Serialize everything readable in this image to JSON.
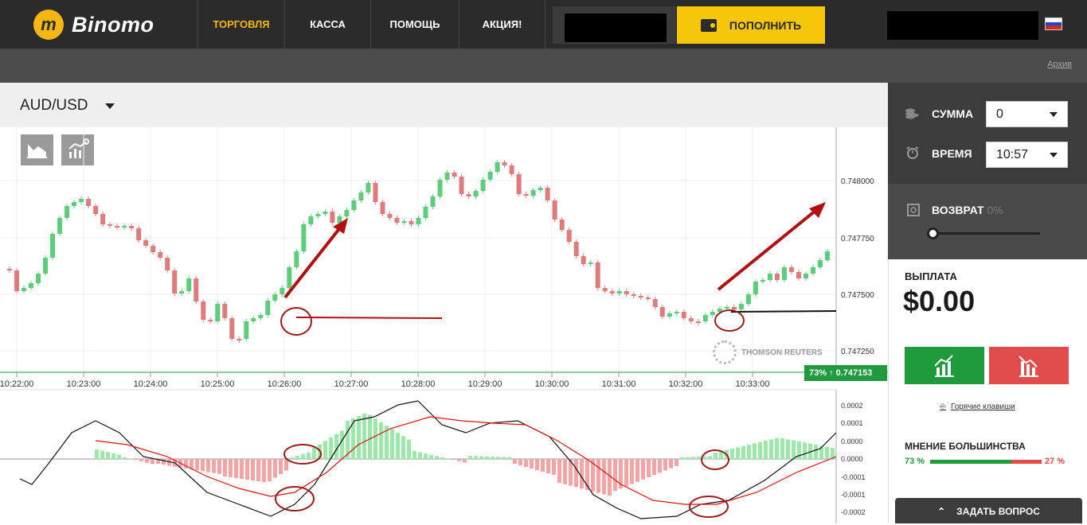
{
  "brand": {
    "name": "Binomo",
    "mark": "m"
  },
  "nav": [
    {
      "label": "ТОРГОВЛЯ",
      "active": true
    },
    {
      "label": "КАССА",
      "active": false
    },
    {
      "label": "ПОМОЩЬ",
      "active": false
    },
    {
      "label": "АКЦИЯ!",
      "active": false
    }
  ],
  "deposit_label": "ПОПОЛНИТЬ",
  "archive_label": "Архив",
  "asset": {
    "pair": "AUD/USD"
  },
  "side": {
    "amount_label": "СУММА",
    "amount_value": "0",
    "time_label": "ВРЕМЯ",
    "time_value": "10:57",
    "refund_label": "ВОЗВРАТ",
    "refund_value": "0%",
    "payout_label": "ВЫПЛАТА",
    "payout_value": "$0.00",
    "hotkeys_label": "Горячие клавиши",
    "majority_label": "МНЕНИЕ БОЛЬШИНСТВА",
    "majority_up": "73 %",
    "majority_down": "27 %",
    "ask_label": "ЗАДАТЬ ВОПРОС"
  },
  "price_tag": "73% ↑ 0.747153",
  "watermark": "THOMSON REUTERS",
  "chart": {
    "time_ticks": [
      "10:22:00",
      "10:23:00",
      "10:24:00",
      "10:25:00",
      "10:26:00",
      "10:27:00",
      "10:28:00",
      "10:29:00",
      "10:30:00",
      "10:31:00",
      "10:32:00",
      "10:33:00"
    ],
    "price_ticks": [
      "0.748000",
      "0.747750",
      "0.747500",
      "0.747250"
    ],
    "osc_ticks": [
      "0.0002",
      "0.0001",
      "0.0000",
      "0.0000",
      "-0.0001",
      "-0.0001",
      "-0.0002"
    ]
  },
  "colors": {
    "up": "#5dcc7b",
    "down": "#e07b7b",
    "accent": "#f6b712",
    "buy": "#1f9a3d",
    "sell": "#e04b4b"
  }
}
